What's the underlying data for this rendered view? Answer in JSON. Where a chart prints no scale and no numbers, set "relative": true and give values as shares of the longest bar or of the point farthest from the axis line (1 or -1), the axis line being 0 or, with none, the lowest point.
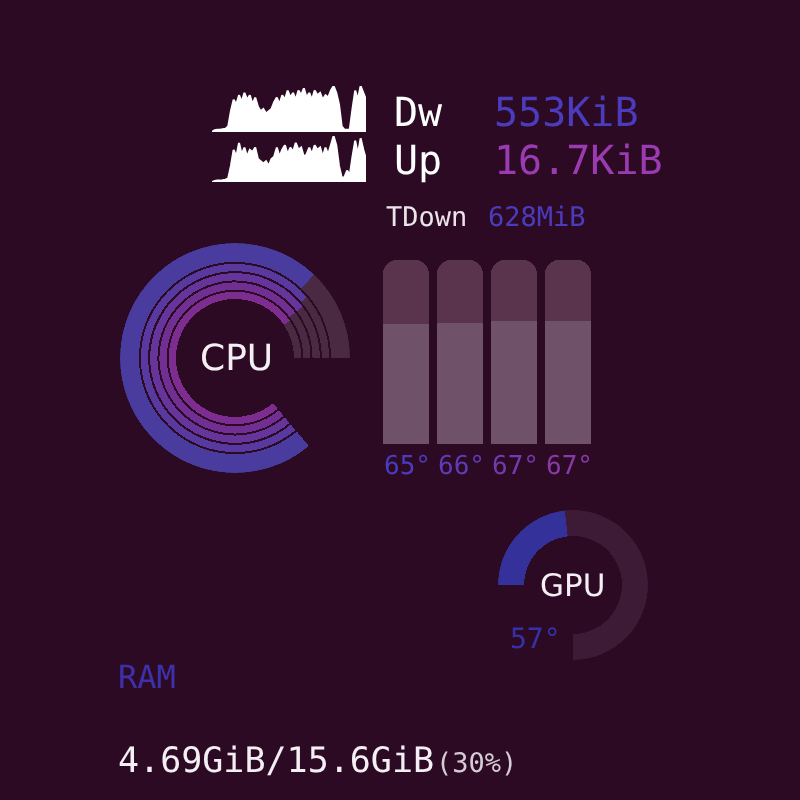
{
  "chart_data": [
    {
      "type": "area",
      "relative": true,
      "categories": [
        null,
        null,
        null,
        null,
        null,
        null,
        null,
        null,
        null,
        null,
        null,
        null,
        null,
        null,
        null,
        null,
        null,
        null,
        null,
        null,
        null,
        null,
        null,
        null,
        null,
        null,
        null,
        null,
        null,
        null,
        null,
        null,
        null,
        null,
        null,
        null,
        null,
        null,
        null,
        null,
        null,
        null,
        null,
        null,
        null,
        null,
        null,
        null,
        null,
        null,
        null,
        null,
        null,
        null,
        null,
        null,
        null,
        null
      ],
      "series": [
        {
          "name": "Dw",
          "color": "#ffffff",
          "values": [
            0,
            0.04,
            0.05,
            0.05,
            0.06,
            0.07,
            0.12,
            0.45,
            0.7,
            0.6,
            0.8,
            0.65,
            0.85,
            0.7,
            0.8,
            0.6,
            0.75,
            0.55,
            0.45,
            0.5,
            0.4,
            0.45,
            0.5,
            0.65,
            0.75,
            0.6,
            0.8,
            0.7,
            0.9,
            0.75,
            0.85,
            0.7,
            0.9,
            0.8,
            0.95,
            0.75,
            0.85,
            0.7,
            0.9,
            0.8,
            0.85,
            0.7,
            0.8,
            0.75,
            0.9,
            1.0,
            0.85,
            0.6,
            0.12,
            0.05,
            0.05,
            0.05,
            0.5,
            0.9,
            0.7,
            1.0,
            0.85,
            0.7
          ]
        }
      ],
      "annotations": [
        "553KiB"
      ]
    },
    {
      "type": "area",
      "relative": true,
      "categories": [
        null,
        null,
        null,
        null,
        null,
        null,
        null,
        null,
        null,
        null,
        null,
        null,
        null,
        null,
        null,
        null,
        null,
        null,
        null,
        null,
        null,
        null,
        null,
        null,
        null,
        null,
        null,
        null,
        null,
        null,
        null,
        null,
        null,
        null,
        null,
        null,
        null,
        null,
        null,
        null,
        null,
        null,
        null,
        null,
        null,
        null,
        null,
        null,
        null,
        null,
        null,
        null,
        null,
        null,
        null,
        null,
        null,
        null
      ],
      "series": [
        {
          "name": "Up",
          "color": "#ffffff",
          "values": [
            0,
            0.02,
            0.03,
            0.03,
            0.04,
            0.05,
            0.08,
            0.35,
            0.7,
            0.55,
            0.85,
            0.6,
            0.75,
            0.55,
            0.7,
            0.65,
            0.75,
            0.5,
            0.45,
            0.4,
            0.45,
            0.35,
            0.5,
            0.55,
            0.75,
            0.55,
            0.7,
            0.8,
            0.6,
            0.75,
            0.65,
            0.85,
            0.7,
            0.75,
            0.55,
            0.6,
            0.75,
            0.6,
            0.8,
            0.7,
            0.75,
            0.55,
            0.75,
            0.6,
            0.8,
            1.0,
            0.8,
            0.35,
            0.1,
            0.1,
            0.25,
            0.15,
            0.55,
            0.9,
            0.6,
            0.95,
            0.7,
            0.5
          ]
        }
      ],
      "annotations": [
        "16.7KiB"
      ]
    },
    {
      "type": "other",
      "title": "TDown",
      "annotations": [
        "628MiB"
      ]
    },
    {
      "type": "donut",
      "title": "CPU",
      "categories": [
        null,
        null
      ],
      "series": [
        {
          "colors": [
            "#4a3b9f",
            "#4a2a42"
          ],
          "values": [
            85,
            15
          ]
        },
        {
          "colors": [
            "#58399f",
            "#4a2a42"
          ],
          "values": [
            87,
            13
          ]
        },
        {
          "colors": [
            "#66359b",
            "#4a2a42"
          ],
          "values": [
            88,
            12
          ]
        },
        {
          "colors": [
            "#722f93",
            "#4a2a42"
          ],
          "values": [
            88,
            12
          ]
        },
        {
          "colors": [
            "#7c2d8f",
            "#4a2a42"
          ],
          "values": [
            89,
            11
          ]
        }
      ]
    },
    {
      "type": "bar",
      "stacked": true,
      "categories": [
        null,
        null,
        null,
        null
      ],
      "ylim": [
        0,
        100
      ],
      "tick_labels": false,
      "series": [
        {
          "color": "#6f5269",
          "values": [
            65,
            66,
            67,
            67
          ],
          "value_labels": [
            "65°",
            "66°",
            "67°",
            "67°"
          ]
        },
        {
          "color": "#5a344c",
          "values": [
            35,
            34,
            33,
            33
          ]
        }
      ]
    },
    {
      "type": "donut",
      "title": "GPU",
      "categories": [
        null,
        null
      ],
      "values": [
        31,
        69
      ],
      "colors": [
        "#35319a",
        "#3d1b37"
      ],
      "annotations": [
        "57°"
      ]
    },
    {
      "type": "other",
      "title": "RAM",
      "annotations": [
        "4.69GiB/15.6GiB",
        "(30%)"
      ]
    }
  ]
}
